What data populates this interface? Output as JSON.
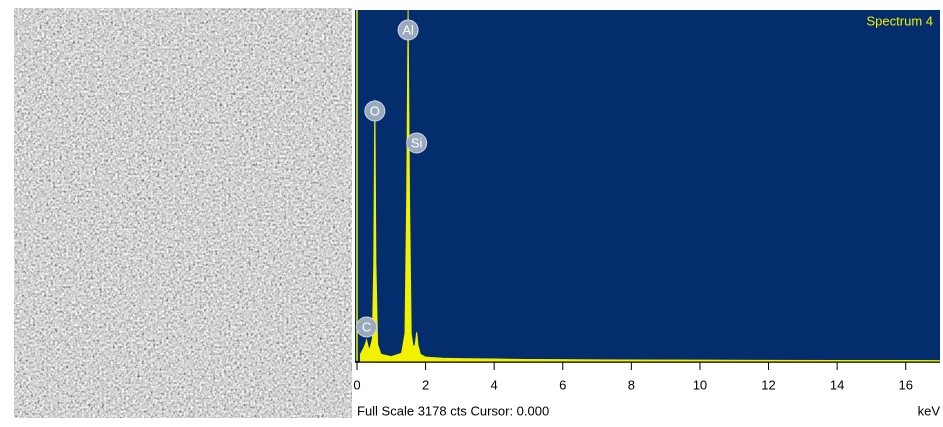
{
  "chart_data": {
    "type": "area",
    "title": "Spectrum 4",
    "x_label": "keV",
    "footer": "Full Scale 3178 cts Cursor: 0.000",
    "xlim": [
      0,
      17
    ],
    "ylim": [
      0,
      3178
    ],
    "xticks": [
      0,
      2,
      4,
      6,
      8,
      10,
      12,
      14,
      16
    ],
    "color": "#f2f200",
    "background": "#032d6c",
    "x": [
      0.1,
      0.2,
      0.25,
      0.28,
      0.31,
      0.36,
      0.45,
      0.49,
      0.52,
      0.55,
      0.6,
      0.7,
      1.0,
      1.3,
      1.4,
      1.45,
      1.49,
      1.53,
      1.58,
      1.64,
      1.7,
      1.74,
      1.78,
      1.85,
      2.0,
      2.5,
      3.0,
      4.0,
      5.0,
      6.0,
      7.0,
      8.0,
      10,
      12,
      14,
      16,
      17
    ],
    "series": [
      {
        "values": [
          60,
          120,
          160,
          190,
          150,
          90,
          200,
          900,
          2365,
          900,
          150,
          60,
          40,
          70,
          250,
          1500,
          3178,
          1500,
          250,
          120,
          150,
          260,
          140,
          60,
          35,
          25,
          22,
          18,
          14,
          12,
          10,
          9,
          8,
          6,
          5,
          4,
          3
        ]
      }
    ],
    "peaks": [
      {
        "label": "C",
        "energy": 0.28
      },
      {
        "label": "O",
        "energy": 0.52
      },
      {
        "label": "Al",
        "energy": 1.49
      },
      {
        "label": "Si",
        "energy": 1.74
      }
    ]
  }
}
